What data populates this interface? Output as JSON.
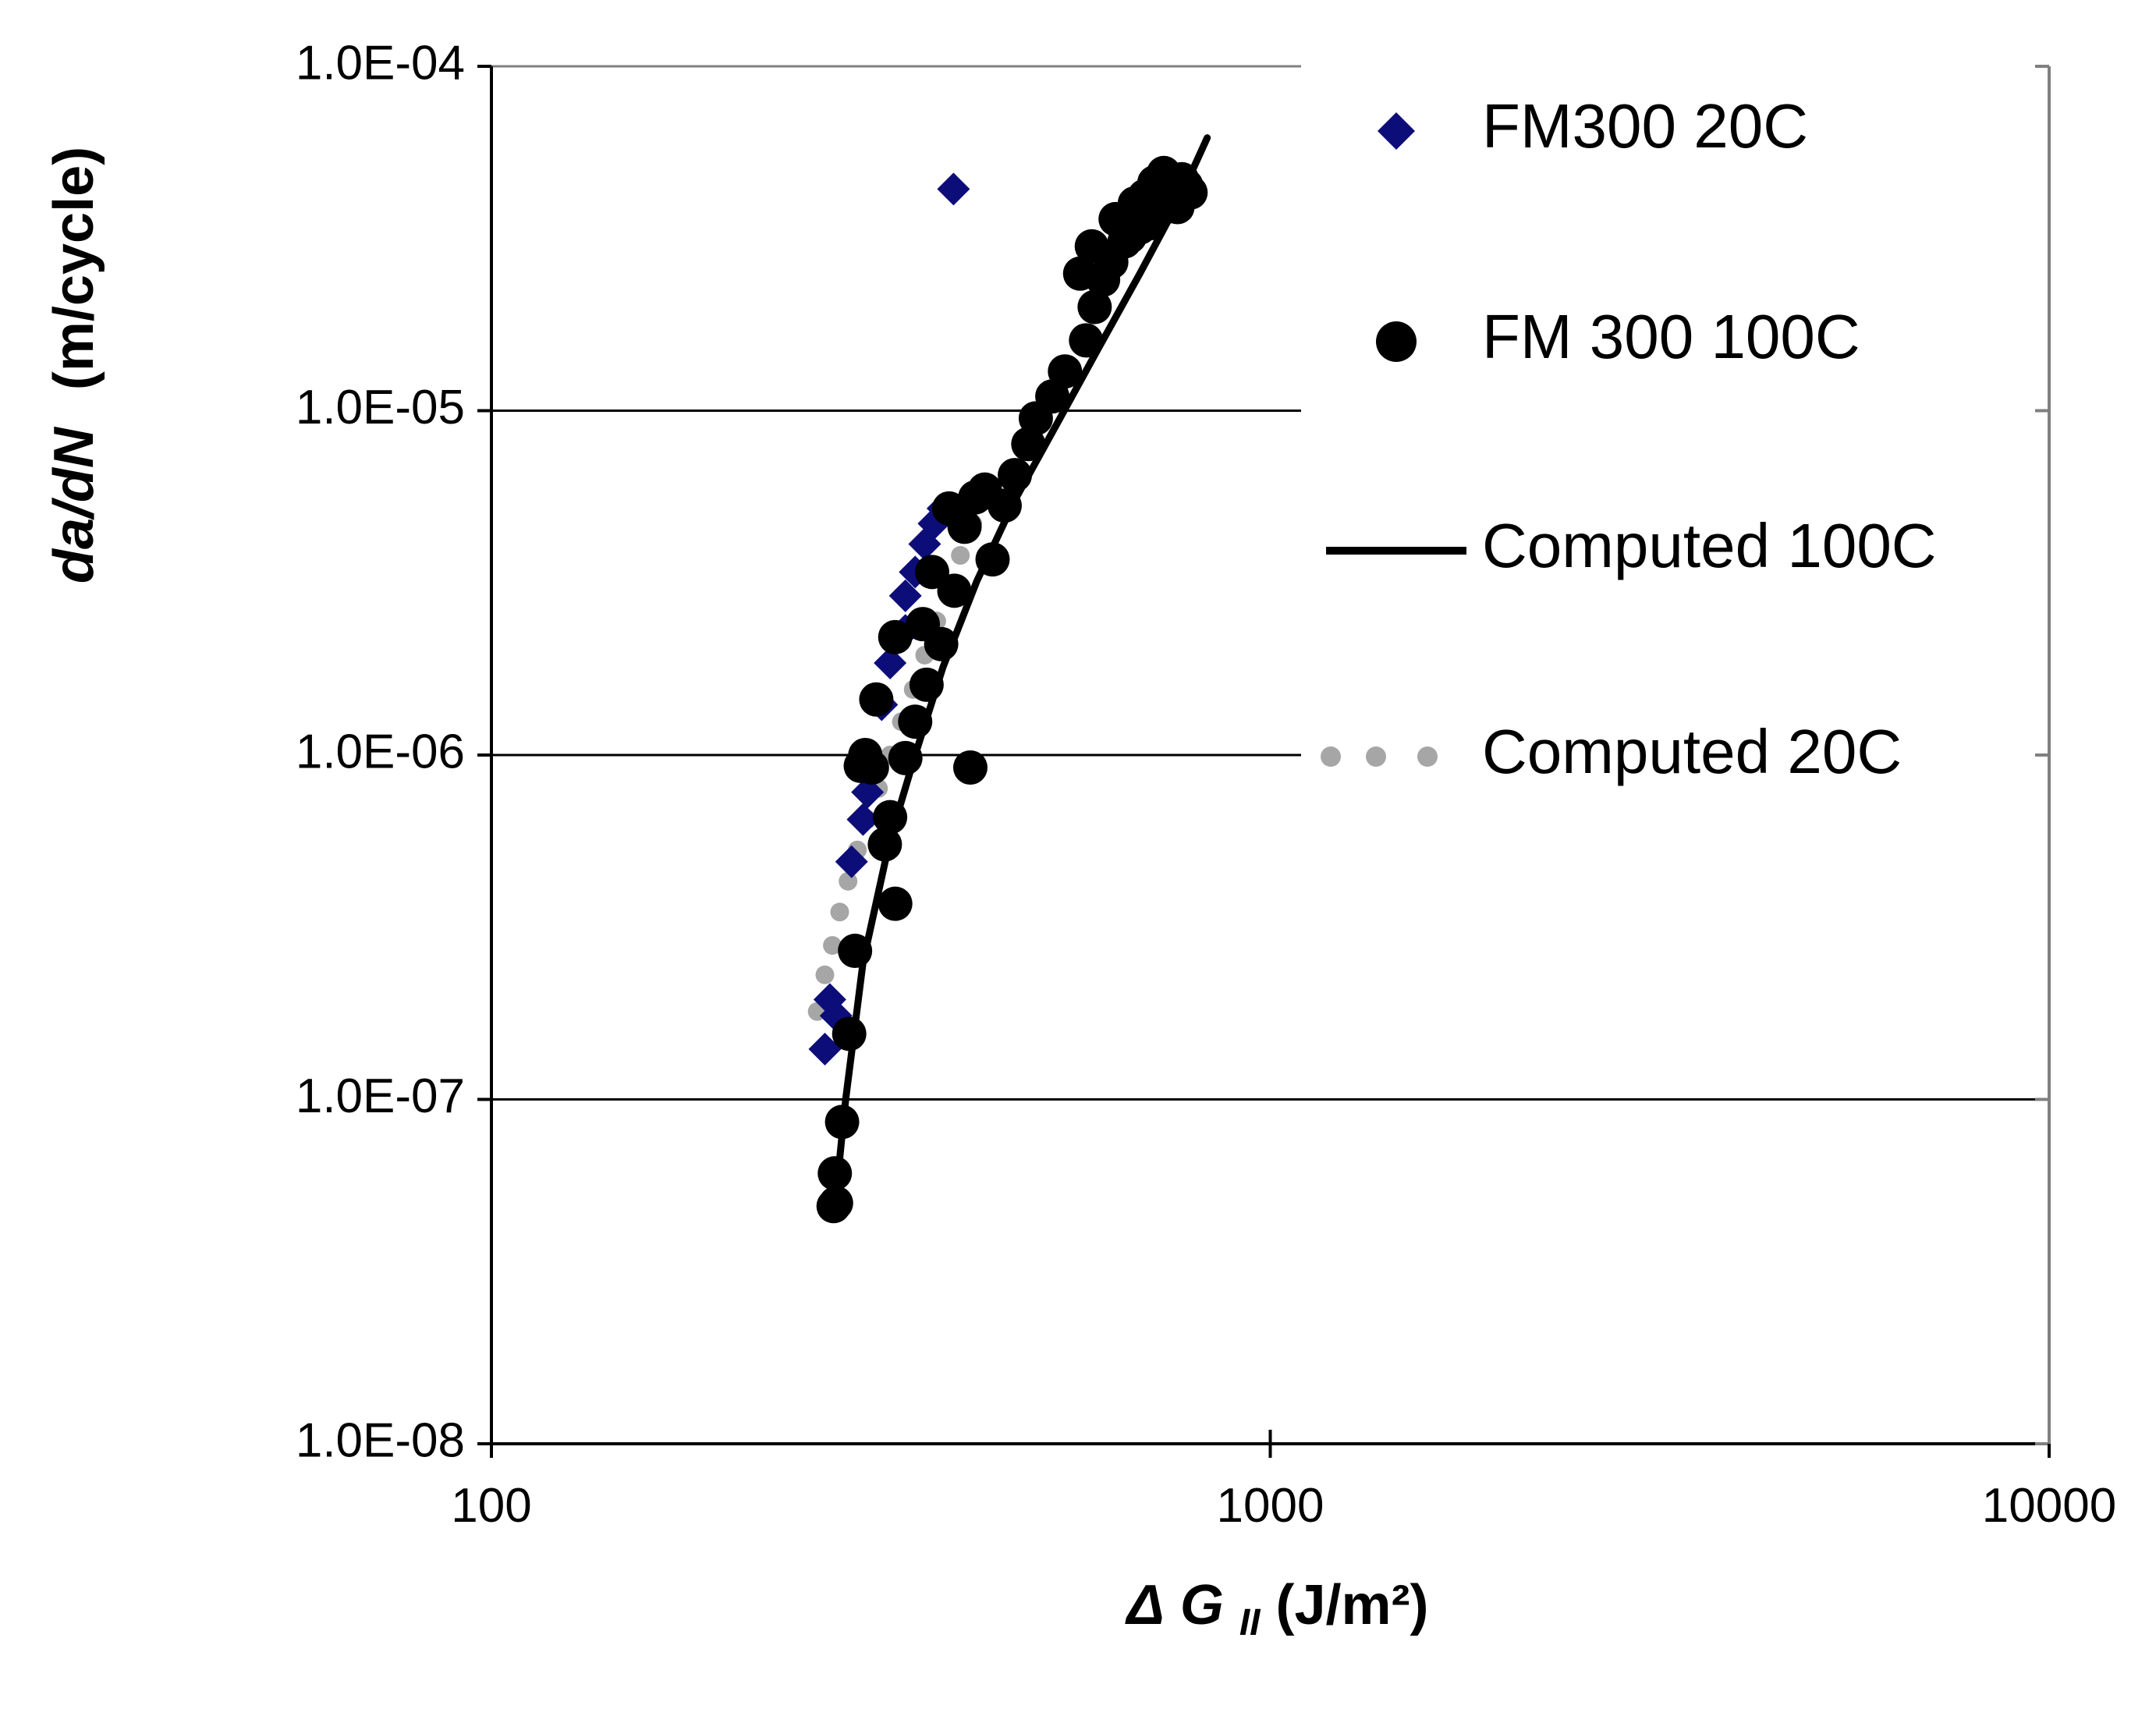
{
  "chart_data": {
    "type": "scatter",
    "x_scale": "log",
    "y_scale": "log",
    "xlim": [
      100,
      10000
    ],
    "ylim": [
      1e-08,
      0.0001
    ],
    "x_ticks": [
      "100",
      "1000",
      "10000"
    ],
    "y_ticks": [
      "1.0E-08",
      "1.0E-07",
      "1.0E-06",
      "1.0E-05",
      "1.0E-04"
    ],
    "xlabel": {
      "delta": "Δ",
      "g": "G",
      "sub": "II",
      "rest": "(J/m²)"
    },
    "ylabel": {
      "italic": "da/dN",
      "rest": "(m/cycle)"
    },
    "grid": {
      "horizontal": true,
      "vertical": false
    },
    "legend_position": "top-right",
    "series": [
      {
        "name": "FM300 20C",
        "marker": "diamond",
        "color": "#0d0d7a",
        "x": [
          268,
          272,
          277,
          290,
          300,
          304,
          317,
          325,
          340,
          340,
          350,
          360,
          370,
          380,
          392
        ],
        "y": [
          1.4e-07,
          1.95e-07,
          1.75e-07,
          4.9e-07,
          6.5e-07,
          7.8e-07,
          1.4e-06,
          1.85e-06,
          2.9e-06,
          2.3e-06,
          3.4e-06,
          4.1e-06,
          4.7e-06,
          5.2e-06,
          4.4e-05
        ]
      },
      {
        "name": "FM 300 100C",
        "marker": "circle",
        "color": "#000000",
        "x": [
          275,
          276,
          277,
          282,
          288,
          293,
          298,
          302,
          308,
          312,
          320,
          325,
          330,
          330,
          340,
          350,
          358,
          362,
          368,
          378,
          387,
          393,
          405,
          412,
          418,
          430,
          440,
          456,
          470,
          489,
          500,
          525,
          545,
          570,
          580,
          590,
          595,
          610,
          625,
          633,
          650,
          660,
          670,
          680,
          690,
          700,
          710,
          720,
          730,
          740,
          750,
          760,
          770,
          780,
          790
        ],
        "y": [
          4.9e-08,
          6.1e-08,
          5e-08,
          8.6e-08,
          1.55e-07,
          2.7e-07,
          9.3e-07,
          1e-06,
          9.2e-07,
          1.45e-06,
          5.5e-07,
          6.6e-07,
          3.7e-07,
          2.2e-06,
          9.8e-07,
          1.25e-06,
          2.4e-06,
          1.6e-06,
          3.4e-06,
          2.1e-06,
          5.2e-06,
          3e-06,
          4.6e-06,
          9.2e-07,
          5.6e-06,
          5.9e-06,
          3.7e-06,
          5.3e-06,
          6.5e-06,
          8e-06,
          9.5e-06,
          1.1e-05,
          1.3e-05,
          2.5e-05,
          1.6e-05,
          3e-05,
          2e-05,
          2.4e-05,
          2.7e-05,
          3.6e-05,
          3.1e-05,
          3.2e-05,
          4e-05,
          3.4e-05,
          4.2e-05,
          3.5e-05,
          4.6e-05,
          3.8e-05,
          4.9e-05,
          4.4e-05,
          4.1e-05,
          3.9e-05,
          4.7e-05,
          4.5e-05,
          4.3e-05
        ]
      },
      {
        "name": "Computed 100C",
        "marker": "line",
        "color": "#000000",
        "x": [
          275,
          285,
          300,
          325,
          350,
          380,
          420,
          470,
          530,
          600,
          680,
          760,
          830
        ],
        "y": [
          4.5e-08,
          1e-07,
          2.5e-07,
          5.7e-07,
          1e-06,
          1.8e-06,
          3.2e-06,
          5.5e-06,
          9e-06,
          1.5e-05,
          2.5e-05,
          4e-05,
          6.2e-05
        ]
      },
      {
        "name": "Computed 20C",
        "marker": "dotted",
        "color": "#a6a6a6",
        "x": [
          262,
          268,
          274,
          280,
          287,
          295,
          304,
          314,
          325,
          336,
          348,
          360,
          373,
          387,
          400,
          415,
          430
        ],
        "y": [
          1.8e-07,
          2.3e-07,
          2.8e-07,
          3.5e-07,
          4.3e-07,
          5.3e-07,
          6.5e-07,
          8e-07,
          1e-06,
          1.25e-06,
          1.55e-06,
          1.95e-06,
          2.45e-06,
          3.1e-06,
          3.8e-06,
          4.7e-06,
          5.8e-06
        ]
      }
    ]
  }
}
